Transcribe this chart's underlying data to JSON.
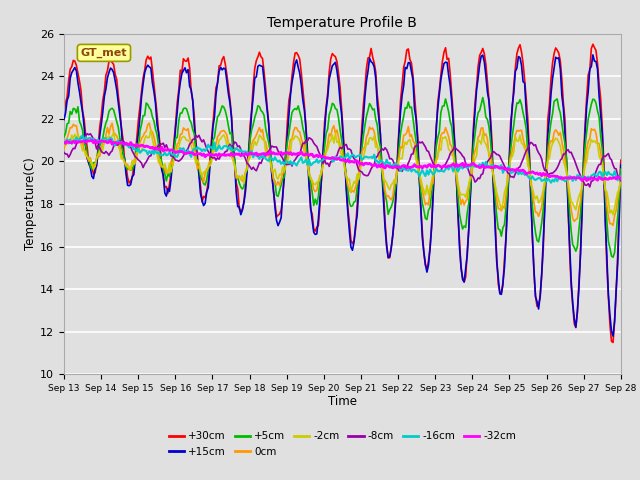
{
  "title": "Temperature Profile B",
  "xlabel": "Time",
  "ylabel": "Temperature(C)",
  "ylim": [
    10,
    26
  ],
  "yticks": [
    10,
    12,
    14,
    16,
    18,
    20,
    22,
    24,
    26
  ],
  "xtick_labels": [
    "Sep 13",
    "Sep 14",
    "Sep 15",
    "Sep 16",
    "Sep 17",
    "Sep 18",
    "Sep 19",
    "Sep 20",
    "Sep 21",
    "Sep 22",
    "Sep 23",
    "Sep 24",
    "Sep 25",
    "Sep 26",
    "Sep 27",
    "Sep 28"
  ],
  "background_color": "#e0e0e0",
  "plot_bg_color": "#e0e0e0",
  "grid_color": "#ffffff",
  "legend_label": "GT_met",
  "series_labels": [
    "+30cm",
    "+15cm",
    "+5cm",
    "0cm",
    "-2cm",
    "-8cm",
    "-16cm",
    "-32cm"
  ],
  "series_colors": [
    "#ff0000",
    "#0000cc",
    "#00bb00",
    "#ff9900",
    "#cccc00",
    "#9900aa",
    "#00cccc",
    "#ff00ff"
  ],
  "series_linewidths": [
    1.2,
    1.2,
    1.2,
    1.2,
    1.2,
    1.2,
    1.5,
    2.0
  ]
}
